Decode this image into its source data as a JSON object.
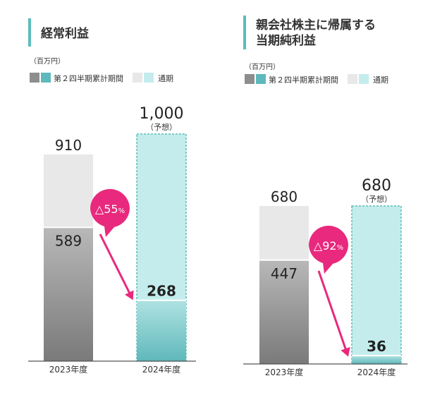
{
  "colors": {
    "accent": "#5dbcbc",
    "prior_total": "#e8e8e8",
    "prior_h1_top": "#b8b8b8",
    "prior_h1_bottom": "#7a7a7a",
    "current_total": "#c4ecec",
    "current_h1_top": "#b0e2e2",
    "current_h1_bottom": "#5fb8bb",
    "arrow": "#e8297d",
    "legend_gray": "#8e8e8e"
  },
  "legend": {
    "unit": "（百万円）",
    "h1_label": "第２四半期累計期間",
    "full_label": "通期"
  },
  "chart_data": [
    {
      "type": "bar",
      "title": "経常利益",
      "categories": [
        "2023年度",
        "2024年度"
      ],
      "series": [
        {
          "name": "第２四半期累計期間",
          "values": [
            589,
            268
          ]
        },
        {
          "name": "通期",
          "values": [
            910,
            1000
          ]
        }
      ],
      "value_labels": {
        "h1": [
          "589",
          "268"
        ],
        "full": [
          "910",
          "1,000"
        ]
      },
      "forecast_label": "（予想）",
      "change": {
        "value": "△55",
        "unit": "%"
      },
      "ylim": [
        0,
        1000
      ]
    },
    {
      "type": "bar",
      "title": [
        "親会社株主に帰属する",
        "当期純利益"
      ],
      "categories": [
        "2023年度",
        "2024年度"
      ],
      "series": [
        {
          "name": "第２四半期累計期間",
          "values": [
            447,
            36
          ]
        },
        {
          "name": "通期",
          "values": [
            680,
            680
          ]
        }
      ],
      "value_labels": {
        "h1": [
          "447",
          "36"
        ],
        "full": [
          "680",
          "680"
        ]
      },
      "forecast_label": "（予想）",
      "change": {
        "value": "△92",
        "unit": "%"
      },
      "ylim": [
        0,
        680
      ]
    }
  ]
}
